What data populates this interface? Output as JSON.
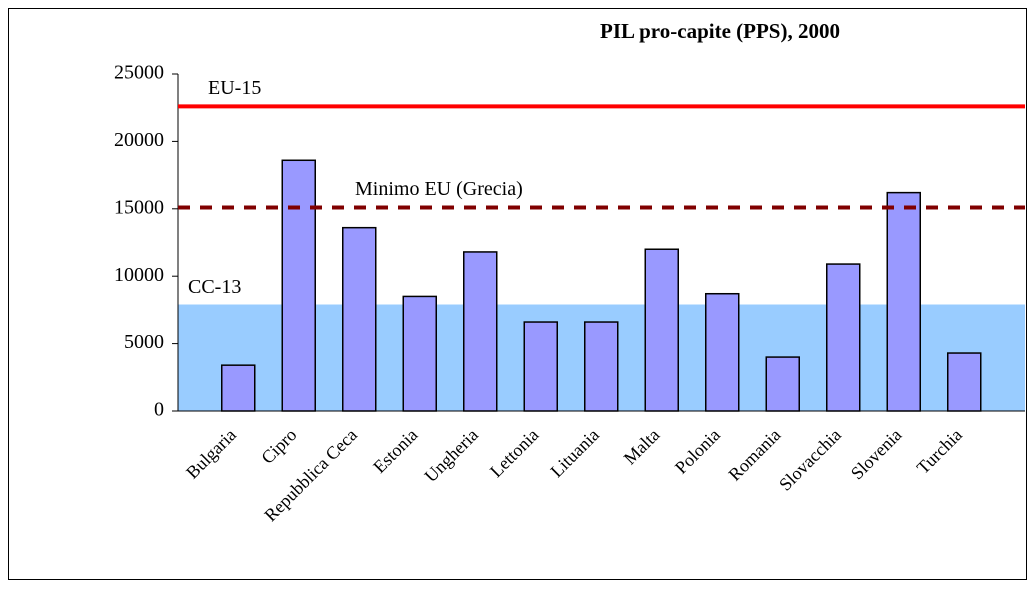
{
  "chart_data": {
    "type": "bar",
    "title": "PIL pro-capite (PPS), 2000",
    "categories": [
      "Bulgaria",
      "Cipro",
      "Repubblica Ceca",
      "Estonia",
      "Ungheria",
      "Lettonia",
      "Lituania",
      "Malta",
      "Polonia",
      "Romania",
      "Slovacchia",
      "Slovenia",
      "Turchia"
    ],
    "values": [
      3400,
      18600,
      13600,
      8500,
      11800,
      6600,
      6600,
      12000,
      8700,
      4000,
      10900,
      16200,
      4300
    ],
    "color": "#9999ff",
    "ylim": [
      0,
      25000
    ],
    "yticks": [
      0,
      5000,
      10000,
      15000,
      20000,
      25000
    ],
    "reference_lines": [
      {
        "label": "EU-15",
        "value": 22600,
        "color": "#ff0000",
        "style": "solid"
      },
      {
        "label": "Minimo EU (Grecia)",
        "value": 15100,
        "color": "#800000",
        "style": "dashed"
      },
      {
        "label": "CC-13",
        "value": 7900,
        "color": "#99ccff",
        "style": "area"
      }
    ]
  }
}
